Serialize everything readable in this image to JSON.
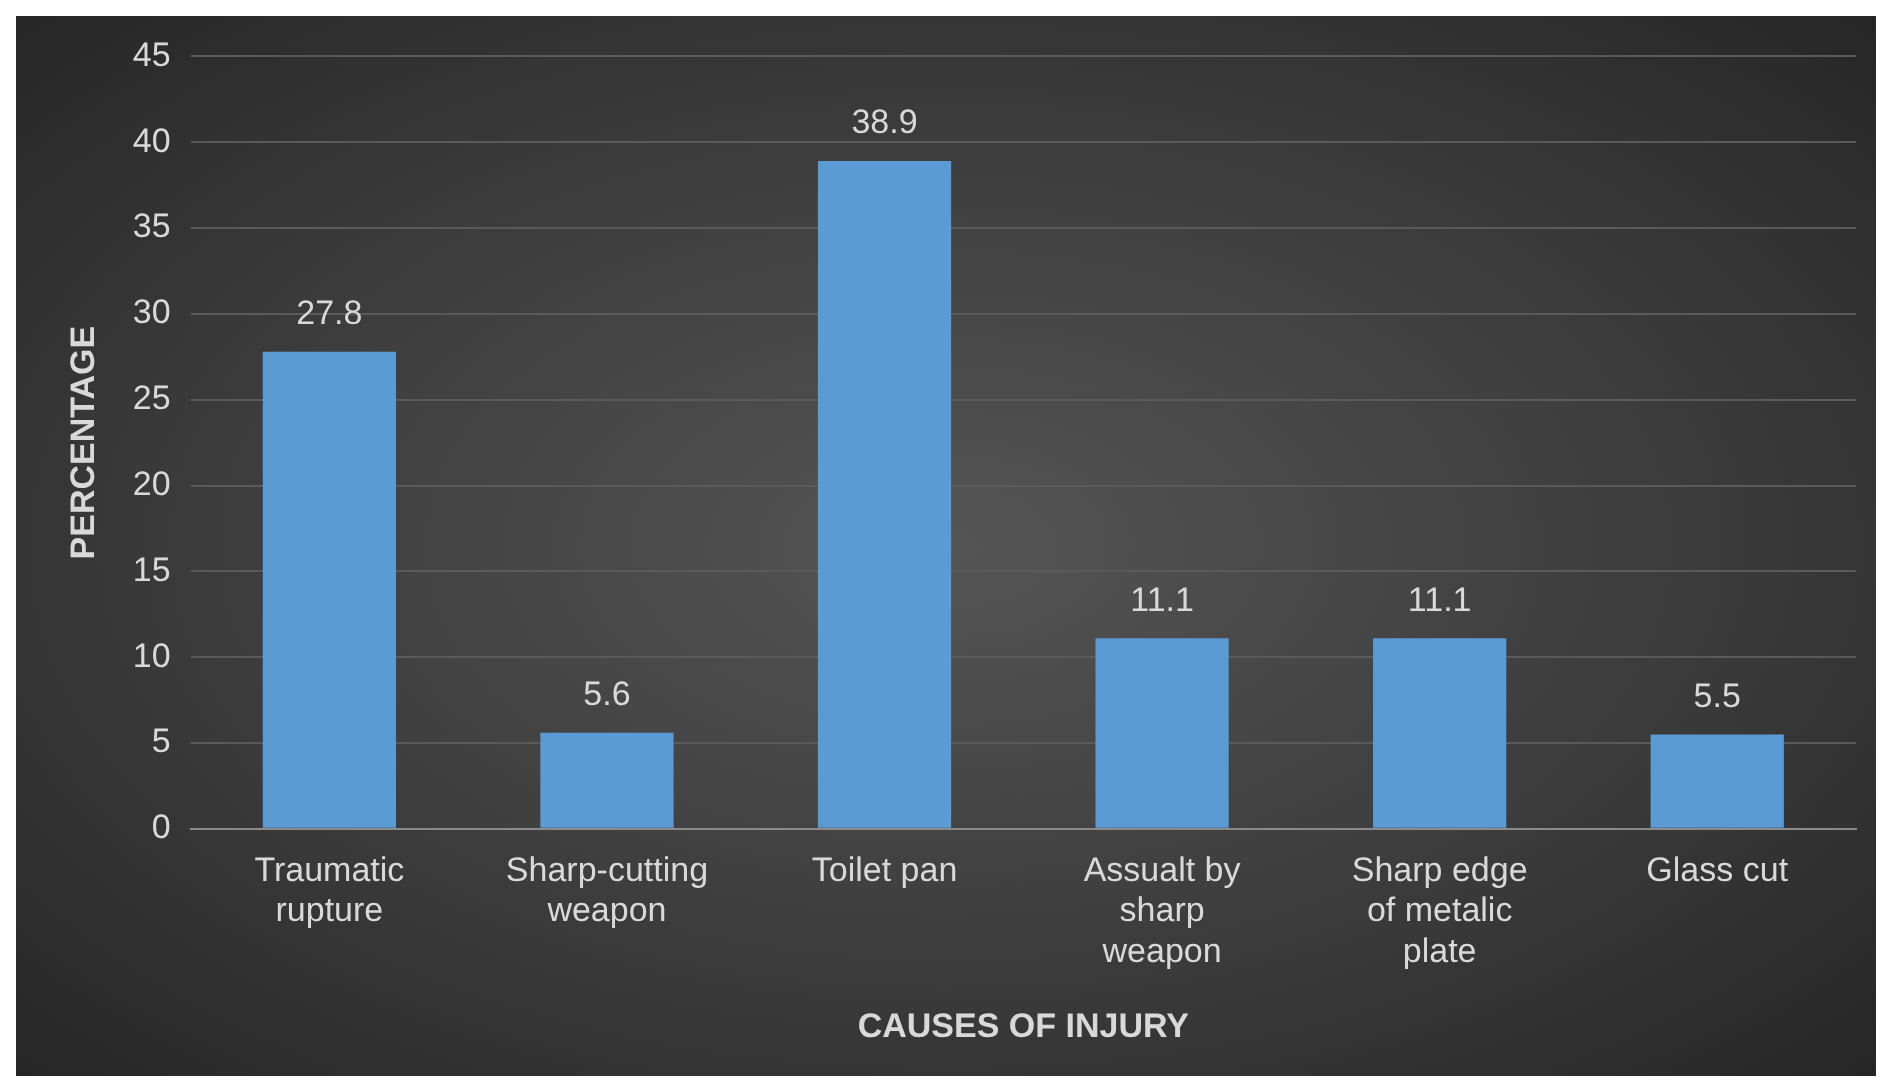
{
  "chart_data": {
    "type": "bar",
    "xlabel": "CAUSES OF INJURY",
    "ylabel": "PERCENTAGE",
    "categories": [
      "Traumatic rupture",
      "Sharp-cutting weapon",
      "Toilet pan",
      "Assualt by sharp weapon",
      "Sharp edge of metalic plate",
      "Glass cut"
    ],
    "values": [
      27.8,
      5.6,
      38.9,
      11.1,
      11.1,
      5.5
    ],
    "color": "#5b9bd5",
    "ylim": [
      0,
      45
    ],
    "yticks": [
      0,
      5,
      10,
      15,
      20,
      25,
      30,
      35,
      40,
      45
    ],
    "grid": "y",
    "legend": false,
    "data_labels": true
  }
}
